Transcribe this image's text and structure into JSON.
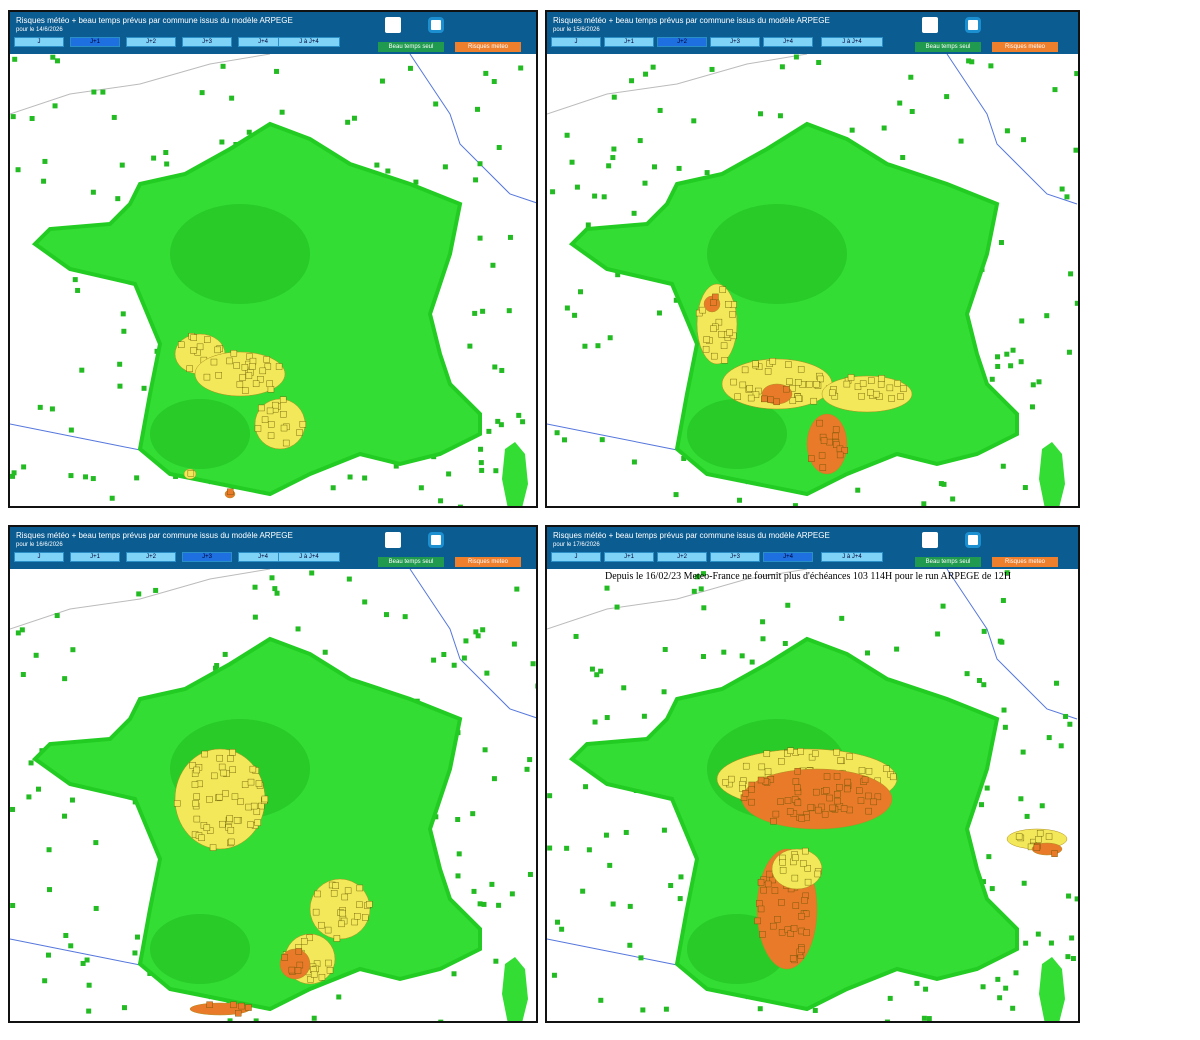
{
  "panels": [
    {
      "title": "Risques météo + beau temps prévus par commune issus du modèle ARPEGE",
      "date": "pour le 14/6/2026",
      "tabs": [
        "J",
        "J+1",
        "J+2",
        "J+3",
        "J+4",
        "J à J+4"
      ],
      "buttons": [
        "Beau temps seul",
        "Risques meteo"
      ]
    },
    {
      "title": "Risques météo + beau temps prévus par commune issus du modèle ARPEGE",
      "date": "pour le 15/6/2026",
      "tabs": [
        "J",
        "J+1",
        "J+2",
        "J+3",
        "J+4",
        "J à J+4"
      ],
      "buttons": [
        "Beau temps seul",
        "Risques meteo"
      ]
    },
    {
      "title": "Risques météo + beau temps prévus par commune issus du modèle ARPEGE",
      "date": "pour le 16/6/2026",
      "tabs": [
        "J",
        "J+1",
        "J+2",
        "J+3",
        "J+4",
        "J à J+4"
      ],
      "buttons": [
        "Beau temps seul",
        "Risques meteo"
      ]
    },
    {
      "title": "Risques météo + beau temps prévus par commune issus du modèle ARPEGE",
      "date": "pour le 17/6/2026",
      "tabs": [
        "J",
        "J+1",
        "J+2",
        "J+3",
        "J+4",
        "J à J+4"
      ],
      "buttons": [
        "Beau temps seul",
        "Risques meteo"
      ],
      "notice": "Depuis le 16/02/23 Meteo-France ne fournit plus d'échéances 103 114H pour le run ARPEGE de 12H"
    }
  ]
}
